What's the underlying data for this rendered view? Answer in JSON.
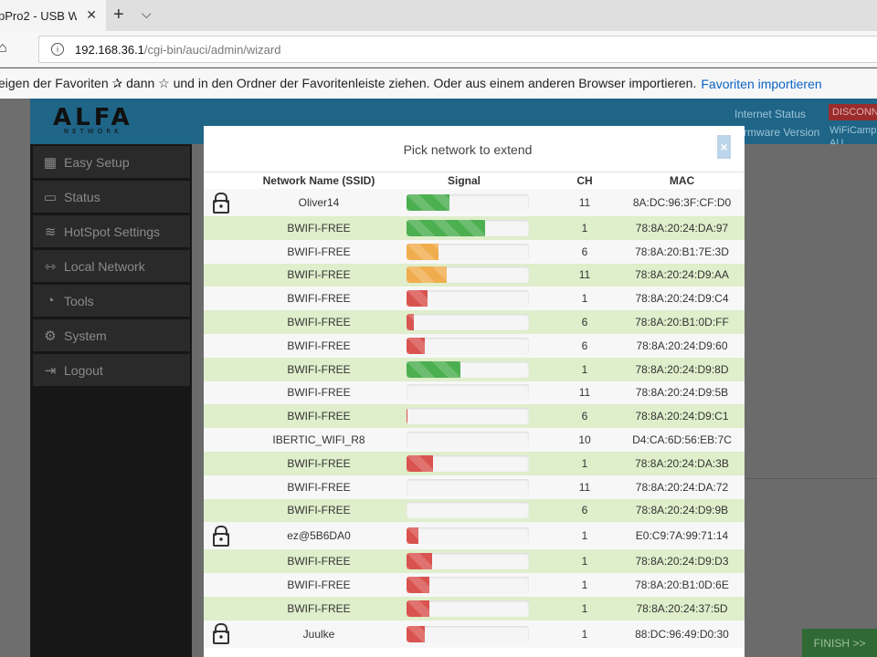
{
  "browser": {
    "tab_title": "pPro2 - USB W",
    "url_host": "192.168.36.1",
    "url_path": "/cgi-bin/auci/admin/wizard",
    "favorites_text": "eigen der Favoriten  ✰  dann ☆ und in den Ordner der Favoritenleiste ziehen. Oder aus einem anderen Browser importieren.",
    "favorites_link": "Favoriten importieren"
  },
  "header": {
    "logo": "ALFA",
    "logo_sub": "NETWORK",
    "internet_status_label": "Internet Status",
    "firmware_label": "Firmware Version",
    "disconnect": "DISCONNE",
    "firmware_value": "WiFiCampPr",
    "firmware_value2": "AU"
  },
  "sidebar": {
    "items": [
      {
        "label": "Easy Setup",
        "icon": "grid-icon"
      },
      {
        "label": "Status",
        "icon": "router-icon"
      },
      {
        "label": "HotSpot Settings",
        "icon": "signal-icon"
      },
      {
        "label": "Local Network",
        "icon": "arrows-icon"
      },
      {
        "label": "Tools",
        "icon": "wifi-icon"
      },
      {
        "label": "System",
        "icon": "gear-icon"
      },
      {
        "label": "Logout",
        "icon": "logout-icon"
      }
    ]
  },
  "finish_button": "FINISH >>",
  "modal": {
    "title": "Pick network to extend",
    "close": "×",
    "columns": [
      "Network Name (SSID)",
      "Signal",
      "CH",
      "MAC"
    ],
    "rows": [
      {
        "locked": true,
        "ssid": "Oliver14",
        "signal": 0.35,
        "color": "#4caf50",
        "ch": "11",
        "mac": "8A:DC:96:3F:CF:D0"
      },
      {
        "locked": false,
        "ssid": "BWIFI-FREE",
        "signal": 0.64,
        "color": "#4caf50",
        "ch": "1",
        "mac": "78:8A:20:24:DA:97"
      },
      {
        "locked": false,
        "ssid": "BWIFI-FREE",
        "signal": 0.26,
        "color": "#f0ad4e",
        "ch": "6",
        "mac": "78:8A:20:B1:7E:3D"
      },
      {
        "locked": false,
        "ssid": "BWIFI-FREE",
        "signal": 0.33,
        "color": "#f0ad4e",
        "ch": "11",
        "mac": "78:8A:20:24:D9:AA"
      },
      {
        "locked": false,
        "ssid": "BWIFI-FREE",
        "signal": 0.17,
        "color": "#d9534f",
        "ch": "1",
        "mac": "78:8A:20:24:D9:C4"
      },
      {
        "locked": false,
        "ssid": "BWIFI-FREE",
        "signal": 0.06,
        "color": "#d9534f",
        "ch": "6",
        "mac": "78:8A:20:B1:0D:FF"
      },
      {
        "locked": false,
        "ssid": "BWIFI-FREE",
        "signal": 0.15,
        "color": "#d9534f",
        "ch": "6",
        "mac": "78:8A:20:24:D9:60"
      },
      {
        "locked": false,
        "ssid": "BWIFI-FREE",
        "signal": 0.44,
        "color": "#4caf50",
        "ch": "1",
        "mac": "78:8A:20:24:D9:8D"
      },
      {
        "locked": false,
        "ssid": "BWIFI-FREE",
        "signal": 0.0,
        "color": "#d9534f",
        "ch": "11",
        "mac": "78:8A:20:24:D9:5B"
      },
      {
        "locked": false,
        "ssid": "BWIFI-FREE",
        "signal": 0.01,
        "color": "#d9534f",
        "ch": "6",
        "mac": "78:8A:20:24:D9:C1"
      },
      {
        "locked": false,
        "ssid": "IBERTIC_WIFI_R8",
        "signal": 0.0,
        "color": "#d9534f",
        "ch": "10",
        "mac": "D4:CA:6D:56:EB:7C"
      },
      {
        "locked": false,
        "ssid": "BWIFI-FREE",
        "signal": 0.22,
        "color": "#d9534f",
        "ch": "1",
        "mac": "78:8A:20:24:DA:3B"
      },
      {
        "locked": false,
        "ssid": "BWIFI-FREE",
        "signal": 0.0,
        "color": "#d9534f",
        "ch": "11",
        "mac": "78:8A:20:24:DA:72"
      },
      {
        "locked": false,
        "ssid": "BWIFI-FREE",
        "signal": 0.0,
        "color": "#d9534f",
        "ch": "6",
        "mac": "78:8A:20:24:D9:9B"
      },
      {
        "locked": true,
        "ssid": "ez@5B6DA0",
        "signal": 0.1,
        "color": "#d9534f",
        "ch": "1",
        "mac": "E0:C9:7A:99:71:14"
      },
      {
        "locked": false,
        "ssid": "BWIFI-FREE",
        "signal": 0.21,
        "color": "#d9534f",
        "ch": "1",
        "mac": "78:8A:20:24:D9:D3"
      },
      {
        "locked": false,
        "ssid": "BWIFI-FREE",
        "signal": 0.19,
        "color": "#d9534f",
        "ch": "1",
        "mac": "78:8A:20:B1:0D:6E"
      },
      {
        "locked": false,
        "ssid": "BWIFI-FREE",
        "signal": 0.19,
        "color": "#d9534f",
        "ch": "1",
        "mac": "78:8A:20:24:37:5D"
      },
      {
        "locked": true,
        "ssid": "Juulke",
        "signal": 0.15,
        "color": "#d9534f",
        "ch": "1",
        "mac": "88:DC:96:49:D0:30"
      }
    ]
  }
}
